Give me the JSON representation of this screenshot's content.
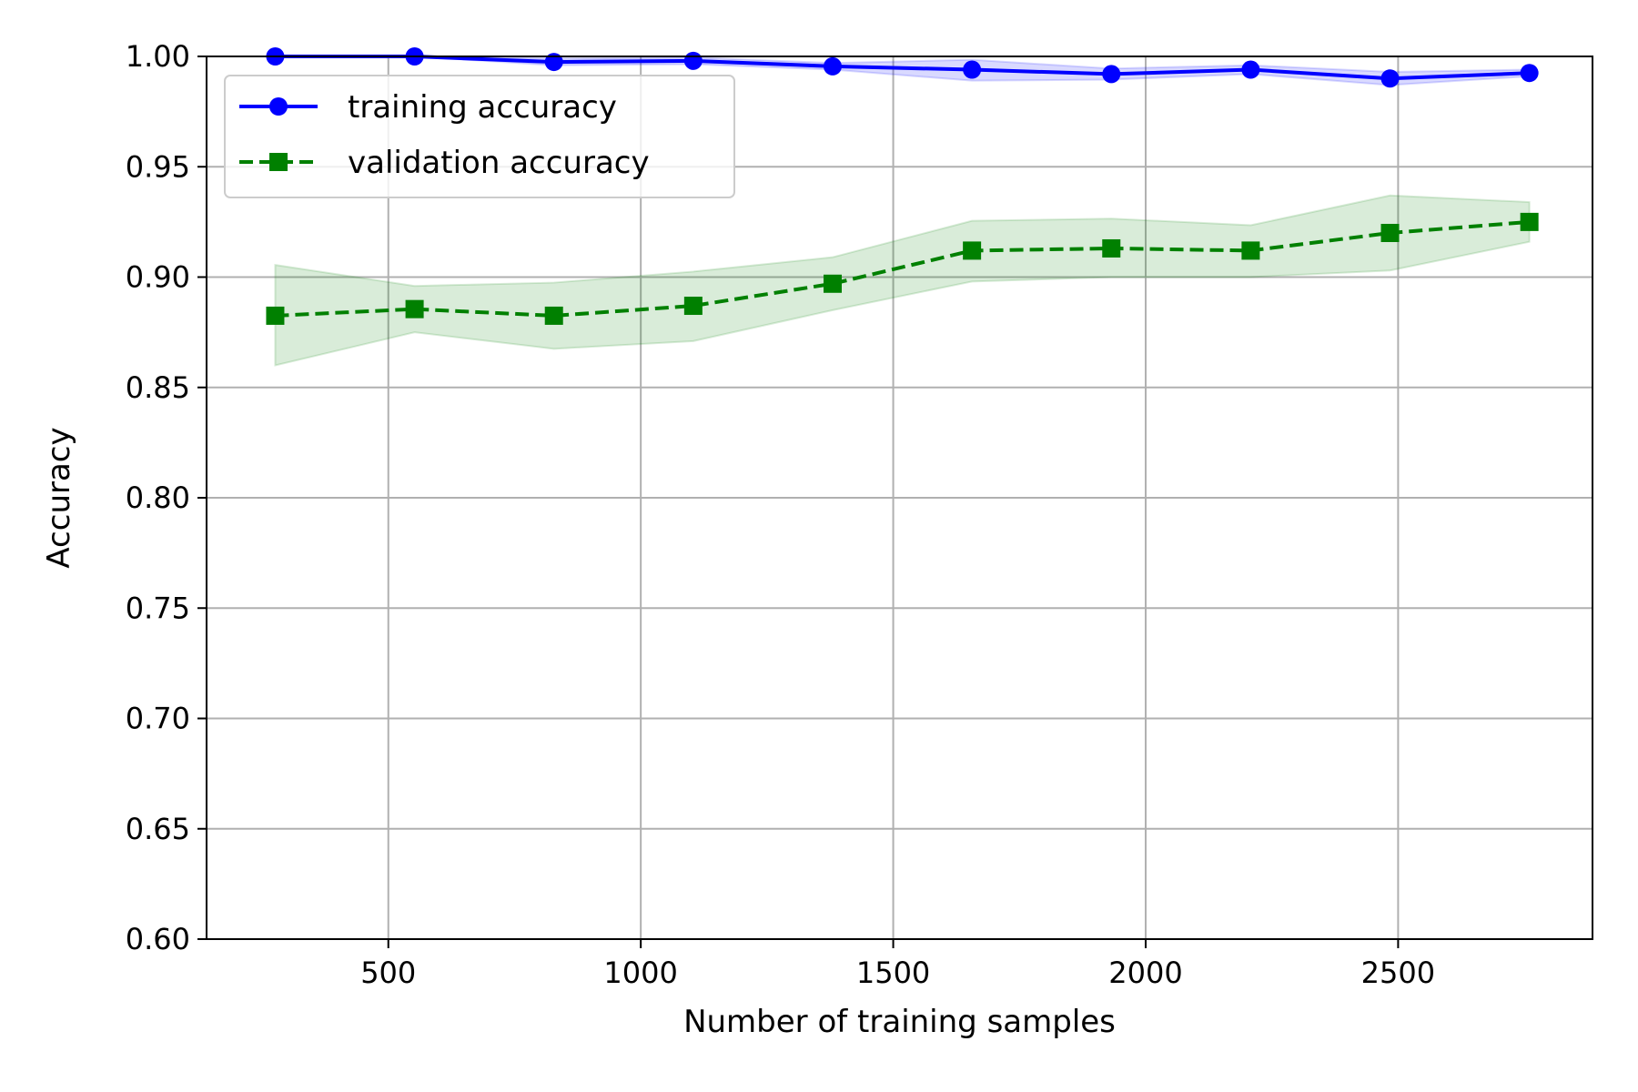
{
  "chart_data": {
    "type": "line",
    "title": "",
    "xlabel": "Number of training samples",
    "ylabel": "Accuracy",
    "xlim": [
      140,
      2885
    ],
    "ylim": [
      0.6,
      1.0
    ],
    "xticks": [
      500,
      1000,
      1500,
      2000,
      2500
    ],
    "yticks": [
      0.6,
      0.65,
      0.7,
      0.75,
      0.8,
      0.85,
      0.9,
      0.95,
      1.0
    ],
    "grid": true,
    "legend_position": "upper-left",
    "x": [
      276,
      552,
      828,
      1104,
      1380,
      1656,
      1932,
      2208,
      2484,
      2760
    ],
    "series": [
      {
        "name": "training accuracy",
        "color": "#0000ff",
        "line_style": "solid",
        "marker": "circle",
        "values": [
          1.0,
          1.0,
          0.9975,
          0.998,
          0.9955,
          0.994,
          0.992,
          0.994,
          0.99,
          0.9925
        ],
        "band_upper": [
          1.0,
          1.0,
          0.999,
          0.9995,
          0.997,
          0.9985,
          0.9945,
          0.996,
          0.993,
          0.994
        ],
        "band_lower": [
          1.0,
          1.0,
          0.996,
          0.9965,
          0.994,
          0.989,
          0.9895,
          0.992,
          0.987,
          0.991
        ],
        "band_color": "#0000ff"
      },
      {
        "name": "validation accuracy",
        "color": "#008000",
        "line_style": "dashed",
        "marker": "square",
        "values": [
          0.8825,
          0.8855,
          0.8825,
          0.887,
          0.897,
          0.912,
          0.913,
          0.912,
          0.92,
          0.925
        ],
        "band_upper": [
          0.9055,
          0.896,
          0.8975,
          0.9025,
          0.909,
          0.9255,
          0.9265,
          0.9235,
          0.937,
          0.934
        ],
        "band_lower": [
          0.86,
          0.875,
          0.8675,
          0.871,
          0.885,
          0.898,
          0.9,
          0.9,
          0.903,
          0.916
        ],
        "band_color": "#008000"
      }
    ]
  }
}
